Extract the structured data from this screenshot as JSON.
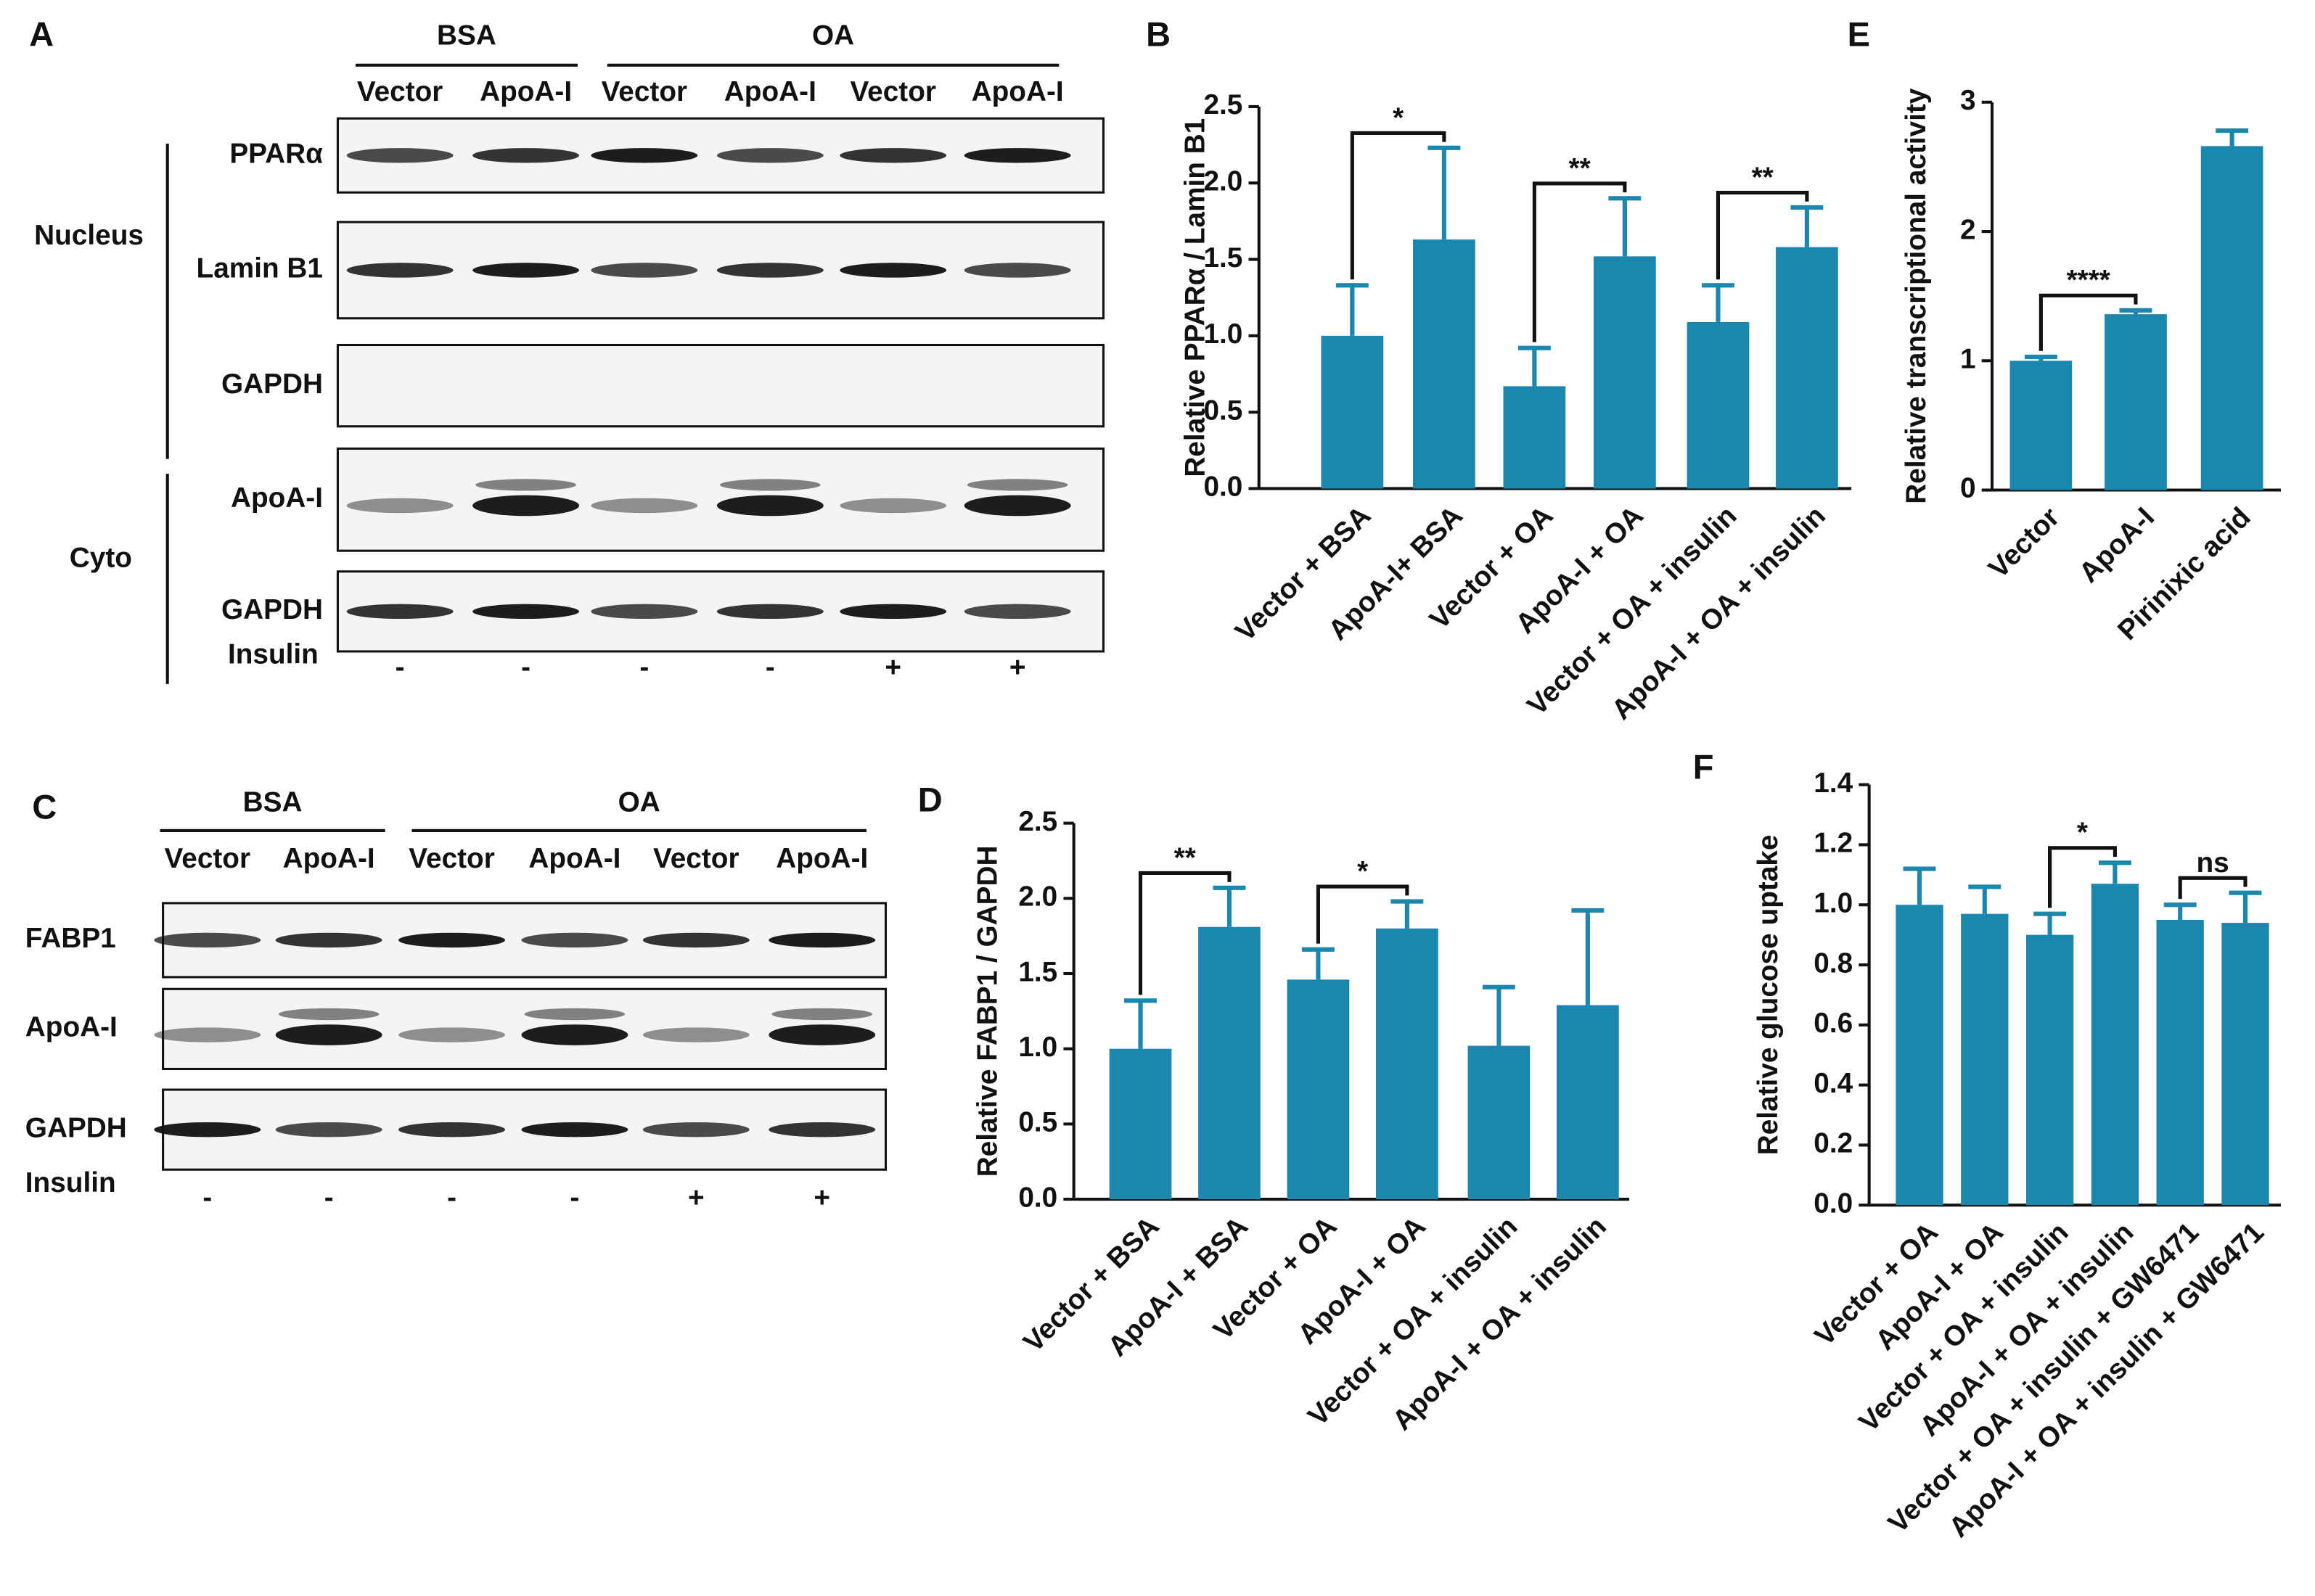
{
  "blots": [
    {
      "panel": "A",
      "groups": [
        {
          "label": "BSA",
          "lanes": 2
        },
        {
          "label": "OA",
          "lanes": 4
        }
      ],
      "lanes": [
        "Vector",
        "ApoA-I",
        "Vector",
        "ApoA-I",
        "Vector",
        "ApoA-I"
      ],
      "rows": [
        "PPARα",
        "Lamin B1",
        "GAPDH",
        "ApoA-I",
        "GAPDH"
      ],
      "compartments": [
        {
          "label": "Nucleus",
          "first": 0,
          "last": 2
        },
        {
          "label": "Cyto",
          "first": 3,
          "last": 4
        }
      ],
      "insulin_label": "Insulin",
      "insulin": [
        "-",
        "-",
        "-",
        "-",
        "+",
        "+"
      ]
    },
    {
      "panel": "C",
      "groups": [
        {
          "label": "BSA",
          "lanes": 2
        },
        {
          "label": "OA",
          "lanes": 4
        }
      ],
      "lanes": [
        "Vector",
        "ApoA-I",
        "Vector",
        "ApoA-I",
        "Vector",
        "ApoA-I"
      ],
      "rows": [
        "FABP1",
        "ApoA-I",
        "GAPDH"
      ],
      "insulin_label": "Insulin",
      "insulin": [
        "-",
        "-",
        "-",
        "-",
        "+",
        "+"
      ]
    }
  ],
  "chart_data": [
    {
      "type": "bar",
      "panel": "B",
      "ylabel": "Relative PPARα / Lamin B1",
      "color": "#1b86ae",
      "categories": [
        "Vector + BSA",
        "ApoA-I+ BSA",
        "Vector + OA",
        "ApoA-I + OA",
        "Vector + OA + insulin",
        "ApoA-I + OA + insulin"
      ],
      "values": [
        1.0,
        1.63,
        0.67,
        1.52,
        1.09,
        1.58
      ],
      "errors": [
        0.33,
        0.6,
        0.25,
        0.38,
        0.24,
        0.26
      ],
      "ylim": [
        0,
        2.5
      ],
      "yticks": [
        {
          "value": 0,
          "label": "0.0"
        },
        0.5,
        {
          "value": 1,
          "label": "1.0"
        },
        1.5,
        {
          "value": 2,
          "label": "2.0"
        },
        2.5
      ],
      "significance": [
        {
          "pair": [
            0,
            1
          ],
          "label": "*"
        },
        {
          "pair": [
            2,
            3
          ],
          "label": "**"
        },
        {
          "pair": [
            4,
            5
          ],
          "label": "**"
        }
      ]
    },
    {
      "type": "bar",
      "panel": "D",
      "ylabel": "Relative FABP1 / GAPDH",
      "color": "#1b86ae",
      "categories": [
        "Vector + BSA",
        "ApoA-I + BSA",
        "Vector + OA",
        "ApoA-I + OA",
        "Vector + OA + insulin",
        "ApoA-I + OA + insulin"
      ],
      "values": [
        1.0,
        1.81,
        1.46,
        1.8,
        1.02,
        1.29
      ],
      "errors": [
        0.32,
        0.26,
        0.2,
        0.18,
        0.39,
        0.63
      ],
      "ylim": [
        0,
        2.5
      ],
      "yticks": [
        {
          "value": 0,
          "label": "0.0"
        },
        0.5,
        {
          "value": 1,
          "label": "1.0"
        },
        1.5,
        {
          "value": 2,
          "label": "2.0"
        },
        2.5
      ],
      "significance": [
        {
          "pair": [
            0,
            1
          ],
          "label": "**"
        },
        {
          "pair": [
            2,
            3
          ],
          "label": "*"
        }
      ]
    },
    {
      "type": "bar",
      "panel": "E",
      "ylabel": "Relative transcriptional activity",
      "color": "#1b86ae",
      "categories": [
        "Vector",
        "ApoA-I",
        "Pirinixic acid"
      ],
      "values": [
        1.0,
        1.36,
        2.66
      ],
      "errors": [
        0.03,
        0.03,
        0.12
      ],
      "ylim": [
        0,
        3
      ],
      "yticks": [
        0,
        1,
        2,
        3
      ],
      "significance": [
        {
          "pair": [
            0,
            1
          ],
          "label": "****"
        }
      ]
    },
    {
      "type": "bar",
      "panel": "F",
      "ylabel": "Relative glucose uptake",
      "color": "#1b86ae",
      "categories": [
        "Vector + OA",
        "ApoA-I + OA",
        "Vector + OA + insulin",
        "ApoA-I + OA + insulin",
        "Vector + OA + insulin + GW6471",
        "ApoA-I + OA + insulin + GW6471"
      ],
      "values": [
        1.0,
        0.97,
        0.9,
        1.07,
        0.95,
        0.94
      ],
      "errors": [
        0.12,
        0.09,
        0.07,
        0.07,
        0.05,
        0.1
      ],
      "ylim": [
        0,
        1.4
      ],
      "yticks": [
        {
          "value": 0,
          "label": "0.0"
        },
        0.2,
        0.4,
        0.6,
        0.8,
        {
          "value": 1,
          "label": "1.0"
        },
        1.2,
        1.4
      ],
      "significance": [
        {
          "pair": [
            2,
            3
          ],
          "label": "*"
        },
        {
          "pair": [
            4,
            5
          ],
          "label": "ns"
        }
      ]
    }
  ]
}
